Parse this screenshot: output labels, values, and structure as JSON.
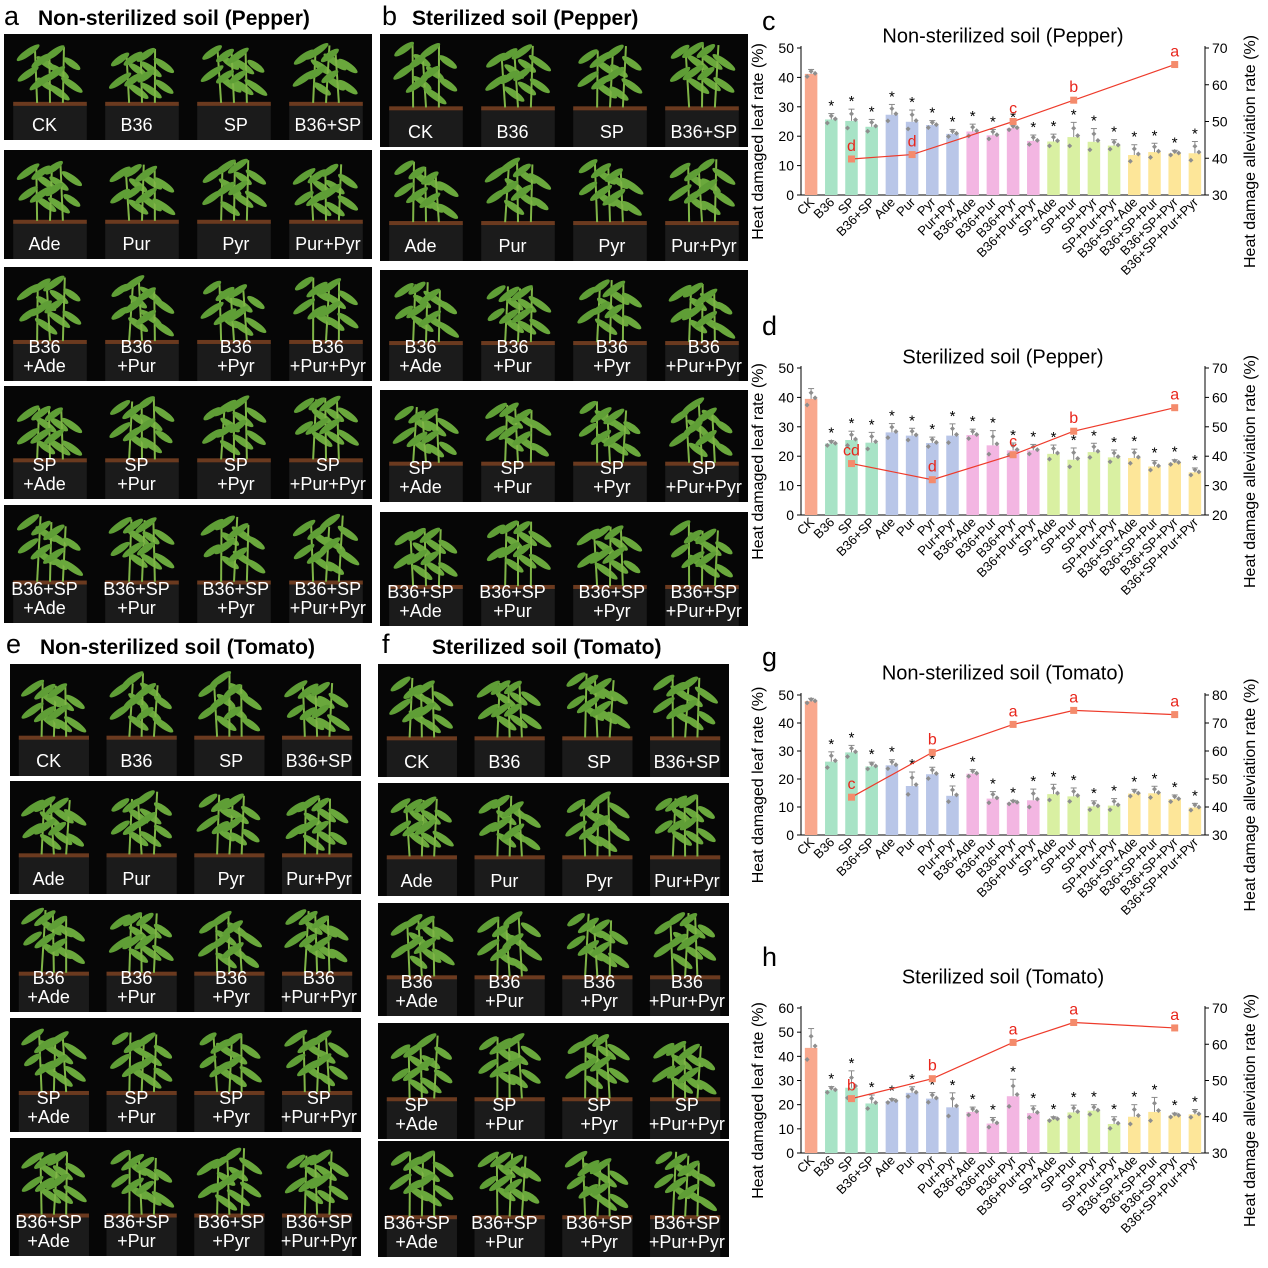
{
  "panel_labels": [
    "a",
    "b",
    "c",
    "d",
    "e",
    "f",
    "g",
    "h"
  ],
  "photo_panels": [
    {
      "label": "a",
      "title": "Non-sterilized soil (Pepper)",
      "rows": [
        [
          [
            "CK"
          ],
          [
            "B36"
          ],
          [
            "SP"
          ],
          [
            "B36+SP"
          ]
        ],
        [
          [
            "Ade"
          ],
          [
            "Pur"
          ],
          [
            "Pyr"
          ],
          [
            "Pur+Pyr"
          ]
        ],
        [
          [
            "B36",
            "+Ade"
          ],
          [
            "B36",
            "+Pur"
          ],
          [
            "B36",
            "+Pyr"
          ],
          [
            "B36",
            "+Pur+Pyr"
          ]
        ],
        [
          [
            "SP",
            "+Ade"
          ],
          [
            "SP",
            "+Pur"
          ],
          [
            "SP",
            "+Pyr"
          ],
          [
            "SP",
            "+Pur+Pyr"
          ]
        ],
        [
          [
            "B36+SP",
            "+Ade"
          ],
          [
            "B36+SP",
            "+Pur"
          ],
          [
            "B36+SP",
            "+Pyr"
          ],
          [
            "B36+SP",
            "+Pur+Pyr"
          ]
        ]
      ]
    },
    {
      "label": "b",
      "title": "Sterilized soil (Pepper)",
      "rows": [
        [
          [
            "CK"
          ],
          [
            "B36"
          ],
          [
            "SP"
          ],
          [
            "B36+SP"
          ]
        ],
        [
          [
            "Ade"
          ],
          [
            "Pur"
          ],
          [
            "Pyr"
          ],
          [
            "Pur+Pyr"
          ]
        ],
        [
          [
            "B36",
            "+Ade"
          ],
          [
            "B36",
            "+Pur"
          ],
          [
            "B36",
            "+Pyr"
          ],
          [
            "B36",
            "+Pur+Pyr"
          ]
        ],
        [
          [
            "SP",
            "+Ade"
          ],
          [
            "SP",
            "+Pur"
          ],
          [
            "SP",
            "+Pyr"
          ],
          [
            "SP",
            "+Pur+Pyr"
          ]
        ],
        [
          [
            "B36+SP",
            "+Ade"
          ],
          [
            "B36+SP",
            "+Pur"
          ],
          [
            "B36+SP",
            "+Pyr"
          ],
          [
            "B36+SP",
            "+Pur+Pyr"
          ]
        ]
      ]
    },
    {
      "label": "e",
      "title": "Non-sterilized soil (Tomato)",
      "rows": [
        [
          [
            "CK"
          ],
          [
            "B36"
          ],
          [
            "SP"
          ],
          [
            "B36+SP"
          ]
        ],
        [
          [
            "Ade"
          ],
          [
            "Pur"
          ],
          [
            "Pyr"
          ],
          [
            "Pur+Pyr"
          ]
        ],
        [
          [
            "B36",
            "+Ade"
          ],
          [
            "B36",
            "+Pur"
          ],
          [
            "B36",
            "+Pyr"
          ],
          [
            "B36",
            "+Pur+Pyr"
          ]
        ],
        [
          [
            "SP",
            "+Ade"
          ],
          [
            "SP",
            "+Pur"
          ],
          [
            "SP",
            "+Pyr"
          ],
          [
            "SP",
            "+Pur+Pyr"
          ]
        ],
        [
          [
            "B36+SP",
            "+Ade"
          ],
          [
            "B36+SP",
            "+Pur"
          ],
          [
            "B36+SP",
            "+Pyr"
          ],
          [
            "B36+SP",
            "+Pur+Pyr"
          ]
        ]
      ]
    },
    {
      "label": "f",
      "title": "Sterilized soil (Tomato)",
      "rows": [
        [
          [
            "CK"
          ],
          [
            "B36"
          ],
          [
            "SP"
          ],
          [
            "B36+SP"
          ]
        ],
        [
          [
            "Ade"
          ],
          [
            "Pur"
          ],
          [
            "Pyr"
          ],
          [
            "Pur+Pyr"
          ]
        ],
        [
          [
            "B36",
            "+Ade"
          ],
          [
            "B36",
            "+Pur"
          ],
          [
            "B36",
            "+Pyr"
          ],
          [
            "B36",
            "+Pur+Pyr"
          ]
        ],
        [
          [
            "SP",
            "+Ade"
          ],
          [
            "SP",
            "+Pur"
          ],
          [
            "SP",
            "+Pyr"
          ],
          [
            "SP",
            "+Pur+Pyr"
          ]
        ],
        [
          [
            "B36+SP",
            "+Ade"
          ],
          [
            "B36+SP",
            "+Pur"
          ],
          [
            "B36+SP",
            "+Pyr"
          ],
          [
            "B36+SP",
            "+Pur+Pyr"
          ]
        ]
      ]
    }
  ],
  "colors": {
    "CK": "#f9a88d",
    "B36": "#a8e3c6",
    "SP": "#a8e3c6",
    "B36+SP": "#a8e3c6",
    "Ade": "#b9c6e8",
    "Pur": "#b9c6e8",
    "Pyr": "#b9c6e8",
    "Pur+Pyr": "#b9c6e8",
    "B36+Ade": "#f3b6e2",
    "B36+Pur": "#f3b6e2",
    "B36+Pyr": "#f3b6e2",
    "B36+Pur+Pyr": "#f3b6e2",
    "SP+Ade": "#d9f0a2",
    "SP+Pur": "#d9f0a2",
    "SP+Pyr": "#d9f0a2",
    "SP+Pur+Pyr": "#d9f0a2",
    "B36+SP+Ade": "#fde699",
    "B36+SP+Pur": "#fde699",
    "B36+SP+Pyr": "#fde699",
    "B36+SP+Pur+Pyr": "#fde699",
    "line": "#ee3b2b",
    "line_marker": "#f48b6c",
    "letter": "#e8261c",
    "points": "#8e8e8e",
    "photo_bg": "#060606",
    "plant": "#5f9e36"
  },
  "chart_data": [
    {
      "label": "c",
      "type": "bar",
      "title": "Non-sterilized soil (Pepper)",
      "ylabel": "Heat damaged leaf rate (%)",
      "y2label": "Heat damage alleviation rate (%)",
      "ylim": [
        0,
        50
      ],
      "yticks": [
        0,
        10,
        20,
        30,
        40,
        50
      ],
      "y2lim": [
        30,
        70
      ],
      "y2ticks": [
        30,
        40,
        50,
        60,
        70
      ],
      "categories": [
        "CK",
        "B36",
        "SP",
        "B36+SP",
        "Ade",
        "Pur",
        "Pyr",
        "Pur+Pyr",
        "B36+Ade",
        "B36+Pur",
        "B36+Pyr",
        "B36+Pur+Pyr",
        "SP+Ade",
        "SP+Pur",
        "SP+Pyr",
        "SP+Pur+Pyr",
        "B36+SP+Ade",
        "B36+SP+Pur",
        "B36+SP+Pyr",
        "B36+SP+Pur+Pyr"
      ],
      "values": [
        41.2,
        25.7,
        25.2,
        23.2,
        27.3,
        24.9,
        23.8,
        20.8,
        21.6,
        20.3,
        22.8,
        18.4,
        18.2,
        19.7,
        18.1,
        16.8,
        13.6,
        14.6,
        14.2,
        14.2
      ],
      "errors": [
        1.5,
        2.0,
        4.0,
        2.5,
        3.5,
        4.0,
        1.5,
        1.5,
        2.5,
        2.0,
        1.0,
        2.0,
        2.5,
        5.0,
        4.5,
        2.0,
        3.5,
        3.0,
        1.0,
        4.0
      ],
      "significance": [
        "",
        "*",
        "*",
        "*",
        "*",
        "*",
        "*",
        "*",
        "*",
        "*",
        "*",
        "*",
        "*",
        "*",
        "*",
        "*",
        "*",
        "*",
        "*",
        "*"
      ],
      "line": {
        "categories": [
          "SP",
          "Pur",
          "B36+Pyr",
          "SP+Pur",
          "B36+SP+Pyr"
        ],
        "values": [
          39.8,
          41.0,
          50.0,
          55.8,
          65.5
        ],
        "letters": [
          "d",
          "d",
          "c",
          "b",
          "a"
        ]
      }
    },
    {
      "label": "d",
      "type": "bar",
      "title": "Sterilized soil (Pepper)",
      "ylabel": "Heat damaged leaf rate (%)",
      "y2label": "Heat damage alleviation rate (%)",
      "ylim": [
        0,
        50
      ],
      "yticks": [
        0,
        10,
        20,
        30,
        40,
        50
      ],
      "y2lim": [
        20,
        70
      ],
      "y2ticks": [
        20,
        30,
        40,
        50,
        60,
        70
      ],
      "categories": [
        "CK",
        "B36",
        "SP",
        "B36+SP",
        "Ade",
        "Pur",
        "Pyr",
        "Pur+Pyr",
        "B36+Ade",
        "B36+Pur",
        "B36+Pyr",
        "B36+Pur+Pyr",
        "SP+Ade",
        "SP+Pur",
        "SP+Pyr",
        "SP+Pur+Pyr",
        "B36+SP+Ade",
        "B36+SP+Pur",
        "B36+SP+Pyr",
        "B36+SP+Pur+Pyr"
      ],
      "values": [
        39.5,
        24.3,
        25.5,
        24.6,
        28.1,
        27.0,
        24.5,
        27.0,
        27.2,
        23.7,
        22.0,
        22.0,
        20.8,
        18.8,
        21.4,
        19.6,
        19.4,
        16.5,
        17.8,
        14.5
      ],
      "errors": [
        3.5,
        1.0,
        3.0,
        3.5,
        3.0,
        2.5,
        2.0,
        4.0,
        2.0,
        5.0,
        2.5,
        2.0,
        3.0,
        4.0,
        3.0,
        2.5,
        3.0,
        2.0,
        1.0,
        1.5
      ],
      "significance": [
        "",
        "*",
        "*",
        "*",
        "*",
        "*",
        "*",
        "*",
        "*",
        "*",
        "*",
        "*",
        "*",
        "*",
        "*",
        "*",
        "*",
        "*",
        "*",
        "*"
      ],
      "line": {
        "categories": [
          "SP",
          "Pyr",
          "B36+Pyr",
          "SP+Pur",
          "B36+SP+Pyr"
        ],
        "values": [
          37.5,
          32.0,
          40.5,
          48.5,
          56.5
        ],
        "letters": [
          "cd",
          "d",
          "c",
          "b",
          "a"
        ]
      }
    },
    {
      "label": "g",
      "type": "bar",
      "title": "Non-sterilized soil (Tomato)",
      "ylabel": "Heat damaged leaf rate (%)",
      "y2label": "Heat damage alleviation rate (%)",
      "ylim": [
        0,
        50
      ],
      "yticks": [
        0,
        10,
        20,
        30,
        40,
        50
      ],
      "y2lim": [
        30,
        80
      ],
      "y2ticks": [
        30,
        40,
        50,
        60,
        70,
        80
      ],
      "categories": [
        "CK",
        "B36",
        "SP",
        "B36+SP",
        "Ade",
        "Pur",
        "Pyr",
        "Pur+Pyr",
        "B36+Ade",
        "B36+Pur",
        "B36+Pyr",
        "B36+Pur+Pyr",
        "SP+Ade",
        "SP+Pur",
        "SP+Pyr",
        "SP+Pur+Pyr",
        "B36+SP+Ade",
        "B36+SP+Pur",
        "B36+SP+Pyr",
        "B36+SP+Pur+Pyr"
      ],
      "values": [
        47.8,
        26.2,
        29.5,
        24.5,
        24.9,
        17.5,
        21.7,
        14.0,
        21.9,
        13.0,
        11.6,
        12.4,
        14.6,
        13.8,
        10.2,
        10.5,
        14.8,
        14.9,
        12.8,
        9.8
      ],
      "errors": [
        1.0,
        3.5,
        2.5,
        1.5,
        2.0,
        5.0,
        2.5,
        3.5,
        1.5,
        2.5,
        0.8,
        4.0,
        3.5,
        3.0,
        2.0,
        2.5,
        1.5,
        2.5,
        1.5,
        1.5
      ],
      "significance": [
        "",
        "*",
        "*",
        "*",
        "*",
        "*",
        "*",
        "*",
        "*",
        "*",
        "*",
        "*",
        "*",
        "*",
        "*",
        "*",
        "*",
        "*",
        "*",
        "*"
      ],
      "line": {
        "categories": [
          "SP",
          "Pyr",
          "B36+Pyr",
          "SP+Pur",
          "B36+SP+Pyr"
        ],
        "values": [
          43.5,
          59.5,
          69.5,
          74.5,
          73.0
        ],
        "letters": [
          "c",
          "b",
          "a",
          "a",
          "a"
        ]
      }
    },
    {
      "label": "h",
      "type": "bar",
      "title": "Sterilized soil (Tomato)",
      "ylabel": "Heat damaged leaf rate (%)",
      "y2label": "Heat damage alleviation rate (%)",
      "ylim": [
        0,
        60
      ],
      "yticks": [
        0,
        10,
        20,
        30,
        40,
        50,
        60
      ],
      "y2lim": [
        30,
        70
      ],
      "y2ticks": [
        30,
        40,
        50,
        60,
        70
      ],
      "categories": [
        "CK",
        "B36",
        "SP",
        "B36+SP",
        "Ade",
        "Pur",
        "Pyr",
        "Pur+Pyr",
        "B36+Ade",
        "B36+Pur",
        "B36+Pyr",
        "B36+Pur+Pyr",
        "SP+Ade",
        "SP+Pur",
        "SP+Pyr",
        "SP+Pur+Pyr",
        "B36+SP+Ade",
        "B36+SP+Pur",
        "B36+SP+Pyr",
        "B36+SP+Pur+Pyr"
      ],
      "values": [
        43.5,
        26.0,
        27.0,
        20.5,
        21.5,
        24.9,
        22.5,
        18.9,
        17.0,
        12.2,
        23.5,
        16.5,
        14.0,
        16.8,
        17.5,
        12.0,
        15.0,
        17.0,
        15.5,
        16.0
      ],
      "errors": [
        8.0,
        1.5,
        7.0,
        3.5,
        1.0,
        2.5,
        2.5,
        6.0,
        2.0,
        2.5,
        7.0,
        3.0,
        1.0,
        3.0,
        2.5,
        3.0,
        5.0,
        6.0,
        1.0,
        2.0
      ],
      "significance": [
        "",
        "*",
        "*",
        "*",
        "*",
        "*",
        "*",
        "*",
        "*",
        "*",
        "*",
        "*",
        "*",
        "*",
        "*",
        "*",
        "*",
        "*",
        "*",
        "*"
      ],
      "line": {
        "categories": [
          "SP",
          "Pyr",
          "B36+Pyr",
          "SP+Pur",
          "B36+SP+Pyr"
        ],
        "values": [
          45.0,
          50.5,
          60.5,
          66.0,
          64.5
        ],
        "letters": [
          "b",
          "b",
          "a",
          "a",
          "a"
        ]
      }
    }
  ]
}
